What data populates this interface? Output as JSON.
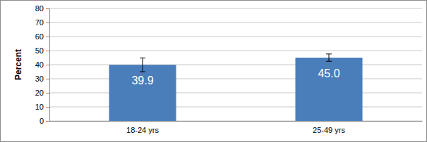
{
  "chart_data": {
    "type": "bar",
    "y_label": "Percent",
    "categories": [
      "18-24 yrs",
      "25-49 yrs"
    ],
    "values": [
      39.9,
      45.0
    ],
    "value_labels": [
      "39.9",
      "45.0"
    ],
    "errors": [
      4.9,
      2.6
    ],
    "color": "#4a7ebb",
    "ylim": [
      0,
      80
    ],
    "yticks": [
      0,
      10,
      20,
      30,
      40,
      50,
      60,
      70,
      80
    ],
    "grid": true,
    "data_labels": true
  }
}
